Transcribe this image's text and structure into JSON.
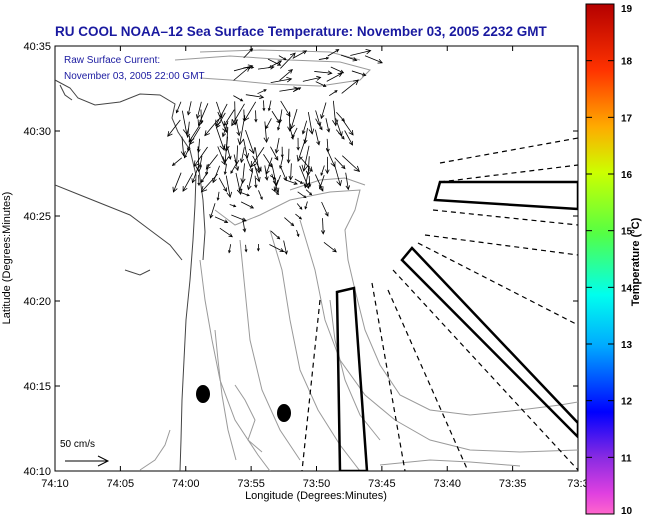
{
  "title": "RU COOL  NOAA–12  Sea Surface Temperature:  November 03, 2005 2232 GMT",
  "legend": {
    "current_label": "Raw Surface Current:",
    "current_time": "November 03, 2005 22:00 GMT",
    "scale_label": "50 cm/s"
  },
  "axes": {
    "xlabel": "Longitude (Degrees:Minutes)",
    "ylabel": "Latitude (Degrees:Minutes)",
    "xticks": [
      "74:10",
      "74:05",
      "74:00",
      "73:55",
      "73:50",
      "73:45",
      "73:40",
      "73:35",
      "73:3"
    ],
    "yticks": [
      "40:35",
      "40:30",
      "40:25",
      "40:20",
      "40:15",
      "40:10"
    ]
  },
  "colorbar": {
    "title": "Temperature (°C)",
    "ticks": [
      "19",
      "18",
      "17",
      "16",
      "15",
      "14",
      "13",
      "12",
      "11",
      "10"
    ],
    "min": 10,
    "max": 19
  },
  "colors": {
    "title": "#1a1aa0",
    "contour": "#9a9a9a",
    "coast": "#444444"
  }
}
